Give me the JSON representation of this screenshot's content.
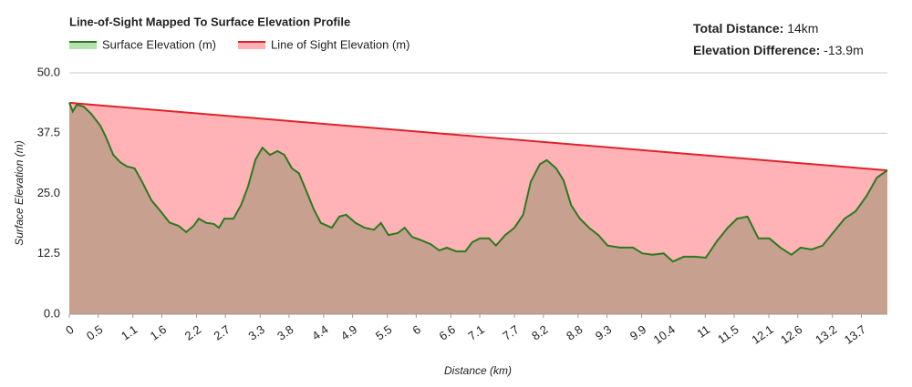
{
  "chart_data": {
    "type": "area",
    "title": "Line-of-Sight Mapped To Surface Elevation Profile",
    "xlabel": "Distance (km)",
    "ylabel": "Surface Elevation (m)",
    "stats": [
      {
        "label": "Total Distance:",
        "value": "14km"
      },
      {
        "label": "Elevation Difference:",
        "value": "-13.9m"
      }
    ],
    "series": [
      {
        "name": "Surface Elevation (m)",
        "color": "#2a7a1e",
        "swatch": "#b7e0b0",
        "fill": "#c8a090",
        "x": [
          0,
          0.06,
          0.13,
          0.25,
          0.38,
          0.54,
          0.63,
          0.76,
          0.88,
          1.0,
          1.13,
          1.26,
          1.42,
          1.58,
          1.73,
          1.89,
          2.02,
          2.15,
          2.24,
          2.37,
          2.5,
          2.59,
          2.68,
          2.84,
          2.97,
          3.09,
          3.22,
          3.34,
          3.47,
          3.6,
          3.72,
          3.85,
          3.97,
          4.1,
          4.23,
          4.35,
          4.54,
          4.67,
          4.79,
          4.95,
          5.11,
          5.27,
          5.39,
          5.52,
          5.68,
          5.8,
          5.93,
          6.09,
          6.25,
          6.4,
          6.53,
          6.69,
          6.85,
          6.97,
          7.1,
          7.26,
          7.38,
          7.54,
          7.7,
          7.85,
          7.98,
          8.14,
          8.26,
          8.42,
          8.55,
          8.68,
          8.83,
          8.99,
          9.15,
          9.31,
          9.53,
          9.75,
          9.91,
          10.09,
          10.28,
          10.44,
          10.63,
          10.82,
          11.01,
          11.2,
          11.39,
          11.55,
          11.73,
          11.92,
          12.11,
          12.3,
          12.49,
          12.65,
          12.84,
          13.03,
          13.22,
          13.41,
          13.6,
          13.79,
          13.97,
          14.15
        ],
        "values": [
          43.8,
          42,
          43.4,
          43,
          41.5,
          39,
          36.8,
          33,
          31.5,
          30.6,
          30.2,
          27.4,
          23.6,
          21.3,
          19,
          18.3,
          17,
          18.3,
          19.8,
          18.9,
          18.7,
          17.9,
          19.8,
          19.8,
          22.6,
          26.4,
          32,
          34.5,
          33,
          33.8,
          33,
          30.2,
          29.2,
          25.5,
          21.7,
          18.9,
          17.9,
          20.2,
          20.6,
          18.9,
          17.9,
          17.5,
          18.9,
          16.4,
          16.8,
          17.9,
          16,
          15.3,
          14.5,
          13.2,
          13.8,
          13,
          13,
          14.9,
          15.7,
          15.7,
          14.2,
          16.4,
          17.9,
          20.6,
          27.4,
          31.1,
          31.9,
          30.2,
          27.7,
          22.6,
          19.8,
          17.9,
          16.4,
          14.2,
          13.8,
          13.8,
          12.6,
          12.3,
          12.6,
          10.9,
          11.9,
          11.9,
          11.7,
          15.1,
          17.9,
          19.8,
          20.2,
          15.7,
          15.7,
          13.8,
          12.3,
          13.8,
          13.4,
          14.2,
          17,
          19.8,
          21.3,
          24.5,
          28.3,
          29.8
        ]
      },
      {
        "name": "Line of Sight Elevation (m)",
        "color": "#e0222a",
        "swatch": "#ffb0b4",
        "fill": "#ffb3b6",
        "x": [
          0,
          14.15
        ],
        "values": [
          43.8,
          29.8
        ]
      }
    ],
    "xlim": [
      0,
      14.15
    ],
    "xticks": [
      0,
      0.5,
      1.1,
      1.6,
      2.2,
      2.7,
      3.3,
      3.8,
      4.4,
      4.9,
      5.5,
      6,
      6.6,
      7.1,
      7.7,
      8.2,
      8.8,
      9.3,
      9.9,
      10.4,
      11,
      11.5,
      12.1,
      12.6,
      13.2,
      13.7
    ],
    "ylim": [
      0,
      50
    ],
    "yticks": [
      {
        "value": 0,
        "label": "0.0"
      },
      12.5,
      {
        "value": 25,
        "label": "25.0"
      },
      37.5,
      {
        "value": 50,
        "label": "50.0"
      }
    ],
    "grid": true
  }
}
